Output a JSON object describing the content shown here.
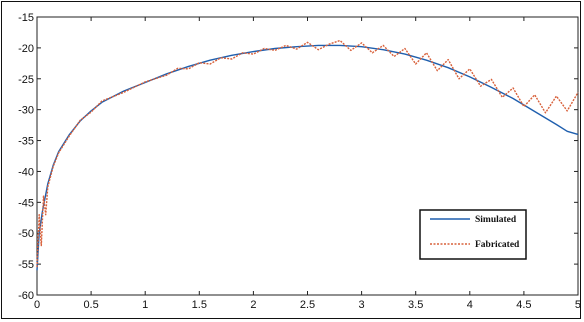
{
  "chart_data": {
    "type": "line",
    "title": "",
    "xlabel": "",
    "ylabel": "",
    "xlim": [
      0,
      5
    ],
    "ylim": [
      -60,
      -15
    ],
    "x_ticks": [
      "0",
      "0.5",
      "1",
      "1.5",
      "2",
      "2.5",
      "3",
      "3.5",
      "4",
      "4.5",
      "5"
    ],
    "y_ticks": [
      "-15",
      "-20",
      "-25",
      "-30",
      "-35",
      "-40",
      "-45",
      "-50",
      "-55",
      "-60"
    ],
    "grid": false,
    "legend_position": "lower-right",
    "series": [
      {
        "name": "Simulated",
        "color": "#1f5fae",
        "x": [
          0,
          0.02,
          0.05,
          0.1,
          0.15,
          0.2,
          0.3,
          0.4,
          0.5,
          0.6,
          0.8,
          1.0,
          1.2,
          1.4,
          1.6,
          1.8,
          2.0,
          2.2,
          2.4,
          2.6,
          2.8,
          3.0,
          3.2,
          3.4,
          3.6,
          3.8,
          4.0,
          4.2,
          4.4,
          4.6,
          4.8,
          4.9,
          5.0
        ],
        "values": [
          -56,
          -50,
          -46.5,
          -42,
          -39,
          -36.8,
          -34,
          -31.8,
          -30.2,
          -28.8,
          -27,
          -25.6,
          -24.2,
          -23,
          -22,
          -21.2,
          -20.6,
          -20.1,
          -19.8,
          -19.6,
          -19.6,
          -19.8,
          -20.3,
          -21,
          -22,
          -23.2,
          -24.7,
          -26.4,
          -28.2,
          -30.3,
          -32.4,
          -33.5,
          -34
        ]
      },
      {
        "name": "Fabricated",
        "color": "#d8603a",
        "x": [
          0,
          0.02,
          0.04,
          0.06,
          0.08,
          0.1,
          0.15,
          0.2,
          0.3,
          0.4,
          0.5,
          0.6,
          0.8,
          1.0,
          1.2,
          1.3,
          1.4,
          1.5,
          1.6,
          1.7,
          1.8,
          1.9,
          2.0,
          2.1,
          2.2,
          2.3,
          2.4,
          2.5,
          2.6,
          2.7,
          2.8,
          2.9,
          3.0,
          3.1,
          3.2,
          3.3,
          3.4,
          3.5,
          3.6,
          3.7,
          3.8,
          3.9,
          4.0,
          4.1,
          4.2,
          4.3,
          4.4,
          4.5,
          4.6,
          4.7,
          4.8,
          4.9,
          5.0
        ],
        "values": [
          -55.5,
          -47,
          -52,
          -44,
          -47,
          -42.5,
          -39.2,
          -37,
          -34.2,
          -31.7,
          -30.4,
          -28.6,
          -27.2,
          -25.5,
          -24.4,
          -23.3,
          -23.4,
          -22.4,
          -22.6,
          -21.6,
          -21.8,
          -20.8,
          -21,
          -20.1,
          -20.4,
          -19.6,
          -20.2,
          -19.1,
          -20.3,
          -19.4,
          -18.8,
          -20.4,
          -19.2,
          -20.8,
          -19.6,
          -21.4,
          -20.1,
          -22.6,
          -20.8,
          -23.7,
          -21.9,
          -25,
          -23.4,
          -26.2,
          -25.1,
          -28,
          -26.5,
          -29.5,
          -27.6,
          -30.5,
          -27.8,
          -30.2,
          -27.2
        ]
      }
    ]
  }
}
